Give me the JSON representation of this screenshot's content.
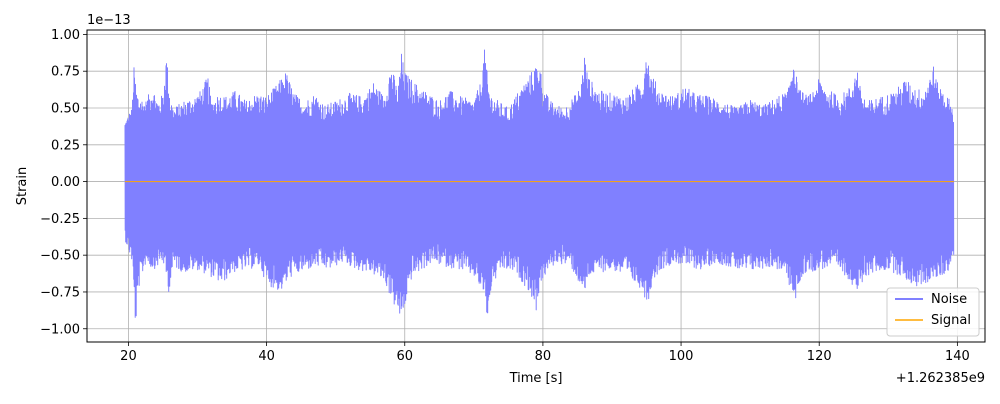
{
  "chart_data": {
    "type": "line",
    "title": "",
    "xlabel": "Time [s]",
    "ylabel": "Strain",
    "x_offset_label": "+1.262385e9",
    "y_scale_label": "1e−13",
    "xlim": [
      14,
      144
    ],
    "ylim": [
      -1.09,
      1.03
    ],
    "x_ticks": [
      20,
      40,
      60,
      80,
      100,
      120,
      140
    ],
    "x_tick_labels": [
      "20",
      "40",
      "60",
      "80",
      "100",
      "120",
      "140"
    ],
    "y_ticks": [
      -1.0,
      -0.75,
      -0.5,
      -0.25,
      0.0,
      0.25,
      0.5,
      0.75,
      1.0
    ],
    "y_tick_labels": [
      "−1.00",
      "−0.75",
      "−0.50",
      "−0.25",
      "0.00",
      "0.25",
      "0.50",
      "0.75",
      "1.00"
    ],
    "grid": true,
    "legend_position": "bottom-right",
    "series": [
      {
        "name": "Noise",
        "color": "#8080ff",
        "x_range": [
          19.5,
          139.5
        ],
        "upper_envelope": {
          "x": [
            19.5,
            20.5,
            20.8,
            21.2,
            21.6,
            22.5,
            23.5,
            24.3,
            25.0,
            25.5,
            26.0,
            26.5,
            28.0,
            29.5,
            30.5,
            31.5,
            32.0,
            33.0,
            34.0,
            35.5,
            37.0,
            38.5,
            40.0,
            41.5,
            42.8,
            44.0,
            45.5,
            47.0,
            48.5,
            50.0,
            52.0,
            54.0,
            55.5,
            57.0,
            58.0,
            59.0,
            59.5,
            60.0,
            60.5,
            62.0,
            63.5,
            65.0,
            66.5,
            68.0,
            70.0,
            71.0,
            71.6,
            72.0,
            72.4,
            73.5,
            75.0,
            76.5,
            78.0,
            79.0,
            79.5,
            80.0,
            81.0,
            83.0,
            84.5,
            85.5,
            86.0,
            86.5,
            88.0,
            90.0,
            92.0,
            93.5,
            94.5,
            95.0,
            95.5,
            97.0,
            99.0,
            100.5,
            102.0,
            104.0,
            106.0,
            108.0,
            110.0,
            112.0,
            114.0,
            115.5,
            116.3,
            116.8,
            117.3,
            118.5,
            120.0,
            121.5,
            123.0,
            124.5,
            125.5,
            126.0,
            127.0,
            129.0,
            131.0,
            132.5,
            133.5,
            135.0,
            136.0,
            136.5,
            137.0,
            138.0,
            139.0,
            139.5
          ],
          "y": [
            0.42,
            0.5,
            0.78,
            0.62,
            0.58,
            0.55,
            0.65,
            0.55,
            0.6,
            0.87,
            0.6,
            0.5,
            0.55,
            0.58,
            0.62,
            0.72,
            0.55,
            0.6,
            0.58,
            0.62,
            0.55,
            0.6,
            0.58,
            0.66,
            0.75,
            0.6,
            0.55,
            0.6,
            0.52,
            0.55,
            0.6,
            0.58,
            0.68,
            0.58,
            0.8,
            0.62,
            0.88,
            0.75,
            0.72,
            0.65,
            0.6,
            0.55,
            0.62,
            0.58,
            0.55,
            0.68,
            0.92,
            0.7,
            0.6,
            0.55,
            0.5,
            0.62,
            0.72,
            0.8,
            0.82,
            0.65,
            0.55,
            0.5,
            0.58,
            0.65,
            0.88,
            0.72,
            0.62,
            0.6,
            0.58,
            0.65,
            0.7,
            0.93,
            0.75,
            0.62,
            0.58,
            0.65,
            0.6,
            0.58,
            0.55,
            0.5,
            0.56,
            0.52,
            0.58,
            0.62,
            0.88,
            0.68,
            0.62,
            0.58,
            0.7,
            0.62,
            0.58,
            0.65,
            0.78,
            0.62,
            0.55,
            0.58,
            0.62,
            0.7,
            0.65,
            0.62,
            0.72,
            0.8,
            0.68,
            0.62,
            0.55,
            0.48
          ],
          "_comment": "approximate positive envelope of the noise trace"
        },
        "lower_envelope": {
          "x": [
            19.5,
            20.5,
            21.0,
            21.5,
            22.5,
            23.5,
            25.0,
            25.8,
            26.5,
            28.0,
            30.0,
            32.0,
            33.5,
            35.0,
            37.0,
            39.0,
            40.0,
            42.0,
            43.5,
            45.0,
            47.0,
            49.0,
            51.0,
            53.0,
            55.0,
            57.0,
            58.5,
            59.5,
            60.0,
            61.0,
            62.5,
            64.0,
            66.0,
            68.0,
            70.0,
            71.5,
            72.0,
            72.5,
            74.0,
            76.0,
            78.0,
            79.0,
            79.5,
            80.5,
            82.0,
            84.0,
            85.5,
            86.0,
            86.5,
            88.0,
            90.0,
            92.0,
            94.0,
            95.2,
            95.8,
            97.0,
            99.0,
            101.0,
            103.0,
            105.0,
            107.0,
            109.0,
            111.0,
            113.0,
            115.0,
            116.5,
            117.0,
            118.0,
            120.0,
            122.0,
            124.0,
            125.5,
            126.0,
            126.5,
            128.0,
            130.0,
            132.0,
            134.0,
            136.0,
            137.5,
            138.5,
            139.5
          ],
          "y": [
            -0.4,
            -0.55,
            -1.0,
            -0.72,
            -0.55,
            -0.6,
            -0.55,
            -0.75,
            -0.58,
            -0.62,
            -0.6,
            -0.65,
            -0.7,
            -0.62,
            -0.6,
            -0.58,
            -0.7,
            -0.75,
            -0.65,
            -0.62,
            -0.58,
            -0.6,
            -0.55,
            -0.6,
            -0.62,
            -0.68,
            -0.85,
            -0.95,
            -0.85,
            -0.65,
            -0.6,
            -0.55,
            -0.58,
            -0.6,
            -0.65,
            -0.78,
            -0.97,
            -0.72,
            -0.6,
            -0.62,
            -0.75,
            -0.88,
            -0.72,
            -0.62,
            -0.55,
            -0.58,
            -0.72,
            -0.78,
            -0.65,
            -0.62,
            -0.6,
            -0.65,
            -0.72,
            -0.83,
            -0.68,
            -0.6,
            -0.55,
            -0.58,
            -0.6,
            -0.55,
            -0.58,
            -0.62,
            -0.6,
            -0.58,
            -0.62,
            -0.83,
            -0.7,
            -0.62,
            -0.6,
            -0.58,
            -0.65,
            -0.75,
            -0.76,
            -0.65,
            -0.62,
            -0.6,
            -0.65,
            -0.72,
            -0.68,
            -0.65,
            -0.62,
            -0.5
          ]
        }
      },
      {
        "name": "Signal",
        "color": "#ffa500",
        "x": [
          19.5,
          139.5
        ],
        "y": [
          0.0,
          0.0
        ]
      }
    ]
  }
}
